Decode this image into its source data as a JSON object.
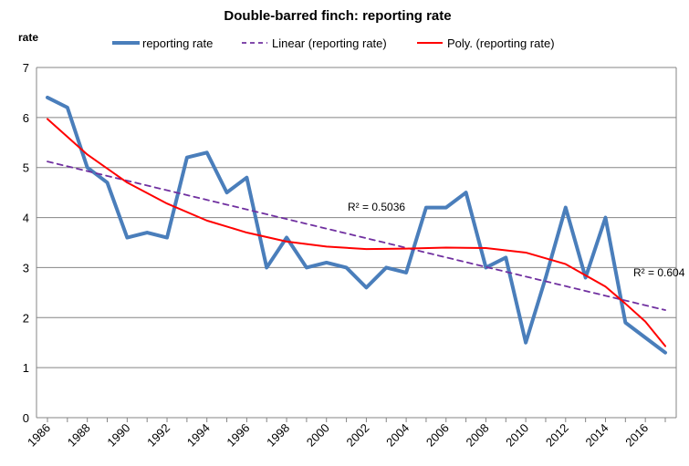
{
  "chart_data": {
    "type": "line",
    "title": "Double-barred finch: reporting rate",
    "ylabel": "rate",
    "xlabel": "",
    "ylim": [
      0,
      7
    ],
    "yticks": [
      "0",
      "1",
      "2",
      "3",
      "4",
      "5",
      "6",
      "7"
    ],
    "xlim": [
      1986,
      2017
    ],
    "xticks": [
      "1986",
      "1988",
      "1990",
      "1992",
      "1994",
      "1996",
      "1998",
      "2000",
      "2002",
      "2004",
      "2006",
      "2008",
      "2010",
      "2012",
      "2014",
      "2016"
    ],
    "grid": true,
    "legend_position": "top",
    "series": [
      {
        "name": "reporting rate",
        "kind": "data",
        "color": "#4a7ebb",
        "x": [
          1986,
          1987,
          1988,
          1989,
          1990,
          1991,
          1992,
          1993,
          1994,
          1995,
          1996,
          1997,
          1998,
          1999,
          2000,
          2001,
          2002,
          2003,
          2004,
          2005,
          2006,
          2007,
          2008,
          2009,
          2010,
          2011,
          2012,
          2013,
          2014,
          2015,
          2016,
          2017
        ],
        "values": [
          6.4,
          6.2,
          5.0,
          4.7,
          3.6,
          3.7,
          3.6,
          5.2,
          5.3,
          4.5,
          4.8,
          3.0,
          3.6,
          3.0,
          3.1,
          3.0,
          2.6,
          3.0,
          2.9,
          4.2,
          4.2,
          4.5,
          3.0,
          3.2,
          1.5,
          2.8,
          4.2,
          2.8,
          4.0,
          1.9,
          1.6,
          1.3
        ]
      },
      {
        "name": "Linear (reporting rate)",
        "kind": "linear-trend",
        "color": "#7030a0",
        "x": [
          1986,
          2017
        ],
        "values": [
          5.12,
          2.15
        ]
      },
      {
        "name": "Poly. (reporting rate)",
        "kind": "poly-trend",
        "color": "#ff0000",
        "x": [
          1986,
          1988,
          1990,
          1992,
          1994,
          1996,
          1998,
          2000,
          2002,
          2004,
          2006,
          2008,
          2010,
          2012,
          2014,
          2015,
          2016,
          2017
        ],
        "values": [
          5.97,
          5.26,
          4.7,
          4.28,
          3.94,
          3.7,
          3.52,
          3.42,
          3.37,
          3.38,
          3.4,
          3.39,
          3.3,
          3.07,
          2.62,
          2.28,
          1.92,
          1.43
        ]
      }
    ],
    "annotations": {
      "r2_linear": "R² = 0.5036",
      "r2_poly": "R² = 0.604"
    }
  }
}
